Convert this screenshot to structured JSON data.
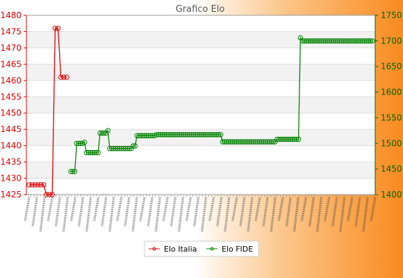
{
  "chart_data": {
    "type": "line",
    "title": "Grafico Elo",
    "x_tick_labels_legible": false,
    "y_left": {
      "min": 1425,
      "max": 1480,
      "step": 5,
      "color": "#dd0000"
    },
    "y_right": {
      "min": 1400,
      "max": 1750,
      "step": 50,
      "color": "#006400"
    },
    "grid": true,
    "legend_position": "bottom-center",
    "series": [
      {
        "name": "Elo Italia",
        "axis": "left",
        "color": "#dd0000",
        "values": [
          1428,
          1428,
          1428,
          1428,
          1428,
          1428,
          1425,
          1425,
          1425,
          1476,
          1476,
          1461,
          1461,
          1461
        ]
      },
      {
        "name": "Elo FIDE",
        "axis": "right",
        "color": "#008000",
        "values": [
          1445,
          1445,
          1445,
          1500,
          1500,
          1500,
          1500,
          1502,
          1482,
          1482,
          1482,
          1482,
          1482,
          1482,
          1482,
          1520,
          1520,
          1520,
          1520,
          1525,
          1490,
          1490,
          1490,
          1490,
          1490,
          1490,
          1490,
          1490,
          1490,
          1490,
          1490,
          1490,
          1495,
          1495,
          1515,
          1515,
          1515,
          1515,
          1515,
          1515,
          1515,
          1515,
          1515,
          1515,
          1517,
          1517,
          1517,
          1517,
          1517,
          1517,
          1517,
          1517,
          1517,
          1517,
          1517,
          1517,
          1517,
          1517,
          1517,
          1517,
          1517,
          1517,
          1517,
          1517,
          1517,
          1517,
          1517,
          1517,
          1517,
          1517,
          1517,
          1517,
          1517,
          1517,
          1517,
          1517,
          1517,
          1517,
          1503,
          1503,
          1503,
          1503,
          1503,
          1503,
          1503,
          1503,
          1503,
          1503,
          1503,
          1503,
          1503,
          1503,
          1503,
          1503,
          1503,
          1503,
          1503,
          1503,
          1503,
          1503,
          1503,
          1503,
          1503,
          1503,
          1503,
          1503,
          1508,
          1508,
          1508,
          1508,
          1508,
          1508,
          1508,
          1508,
          1508,
          1508,
          1508,
          1508,
          1706,
          1700,
          1700,
          1700,
          1700,
          1700,
          1700,
          1700,
          1700,
          1700,
          1700,
          1700,
          1700,
          1700,
          1700,
          1700,
          1700,
          1700,
          1700,
          1700,
          1700,
          1700,
          1700,
          1700,
          1700,
          1700,
          1700,
          1700,
          1700,
          1700,
          1700,
          1700,
          1700,
          1700,
          1700,
          1700,
          1700,
          1700
        ]
      }
    ]
  }
}
